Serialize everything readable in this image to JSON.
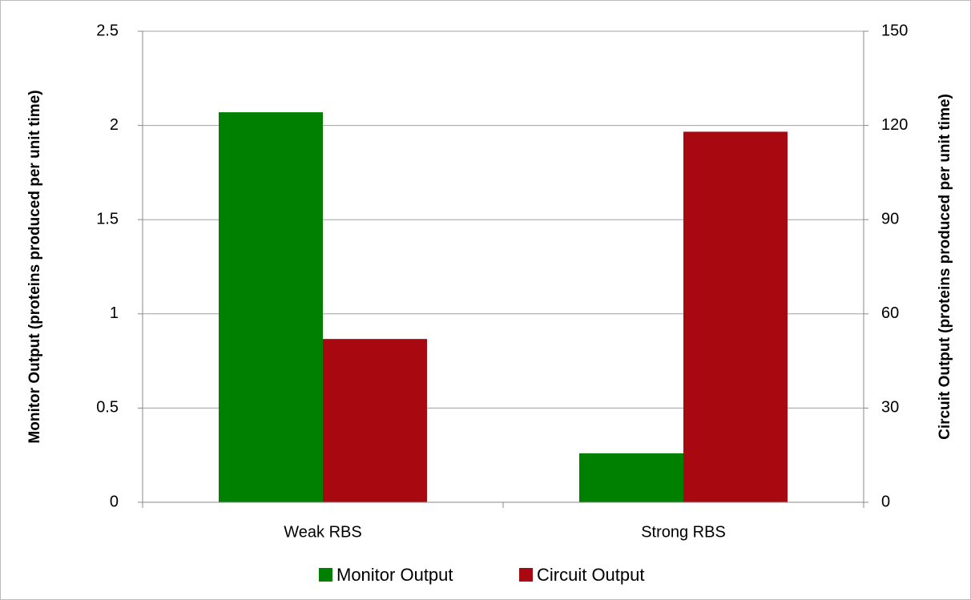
{
  "chart_data": {
    "type": "bar",
    "categories": [
      "Weak RBS",
      "Strong RBS"
    ],
    "series": [
      {
        "name": "Monitor Output",
        "color": "#008000",
        "values": [
          2.07,
          0.26
        ]
      },
      {
        "name": "Circuit Output",
        "color": "#a80810",
        "values": [
          52,
          118
        ],
        "axis": "y2"
      }
    ],
    "ylabel": "Monitor Output (proteins produced per unit time)",
    "y2label": "Circuit Output (proteins produced per unit time)",
    "ylim": [
      0,
      2.5
    ],
    "yticks": [
      0,
      0.5,
      1,
      1.5,
      2,
      2.5
    ],
    "y2lim": [
      0,
      150
    ],
    "y2ticks": [
      0,
      30,
      60,
      90,
      120,
      150
    ],
    "grid": true,
    "legend": "bottom"
  }
}
